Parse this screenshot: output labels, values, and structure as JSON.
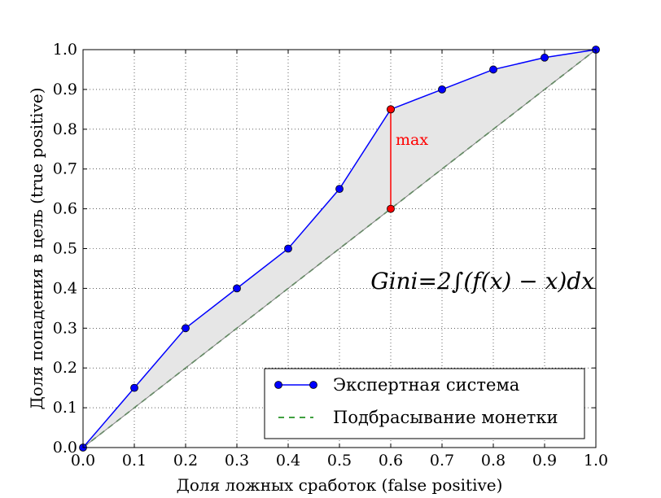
{
  "chart_data": {
    "type": "line",
    "xlabel": "Доля ложных сработок (false positive)",
    "ylabel": "Доля попадения в цель (true positive)",
    "xlim": [
      0.0,
      1.0
    ],
    "ylim": [
      0.0,
      1.0
    ],
    "x_ticks": [
      "0.0",
      "0.1",
      "0.2",
      "0.3",
      "0.4",
      "0.5",
      "0.6",
      "0.7",
      "0.8",
      "0.9",
      "1.0"
    ],
    "y_ticks": [
      "0.0",
      "0.1",
      "0.2",
      "0.3",
      "0.4",
      "0.5",
      "0.6",
      "0.7",
      "0.8",
      "0.9",
      "1.0"
    ],
    "grid": true,
    "legend_position": "bottom-right",
    "series": [
      {
        "name": "Экспертная система",
        "x": [
          0.0,
          0.1,
          0.2,
          0.3,
          0.4,
          0.5,
          0.6,
          0.7,
          0.8,
          0.9,
          1.0
        ],
        "y": [
          0.0,
          0.15,
          0.3,
          0.4,
          0.5,
          0.65,
          0.85,
          0.9,
          0.95,
          0.98,
          1.0
        ],
        "color": "#0000ff",
        "style": "solid",
        "marker": "circle"
      },
      {
        "name": "Подбрасывание монетки",
        "x": [
          0.0,
          1.0
        ],
        "y": [
          0.0,
          1.0
        ],
        "color": "#008000",
        "style": "dashed"
      }
    ],
    "fill_between": {
      "color": "#e6e6e6"
    },
    "max_segment": {
      "x": 0.6,
      "y_low": 0.6,
      "y_high": 0.85,
      "label": "max",
      "color": "#ff0000"
    },
    "formula": "Gini=2∫(f(x) − x)dx"
  }
}
